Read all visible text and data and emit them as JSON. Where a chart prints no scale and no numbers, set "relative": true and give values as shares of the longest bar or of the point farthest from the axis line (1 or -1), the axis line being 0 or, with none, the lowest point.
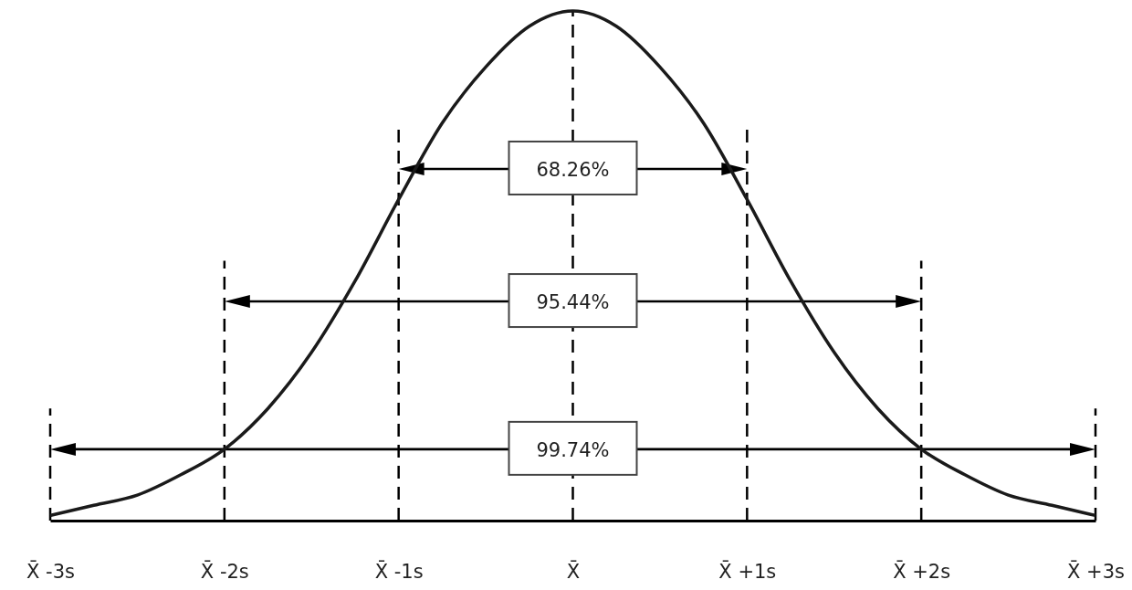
{
  "chart_data": {
    "type": "line",
    "relative": true,
    "line_style": "solid",
    "x": [
      -3,
      -2.75,
      -2.5,
      -2.25,
      -2,
      -1.75,
      -1.5,
      -1.25,
      -1,
      -0.75,
      -0.5,
      -0.25,
      0,
      0.25,
      0.5,
      0.75,
      1,
      1.25,
      1.5,
      1.75,
      2,
      2.25,
      2.5,
      2.75,
      3
    ],
    "series": [
      {
        "color": "#1a1a1a",
        "values": [
          0.01,
          0.03,
          0.05,
          0.09,
          0.14,
          0.22,
          0.33,
          0.47,
          0.63,
          0.78,
          0.89,
          0.97,
          1,
          0.97,
          0.89,
          0.78,
          0.63,
          0.47,
          0.33,
          0.22,
          0.14,
          0.09,
          0.05,
          0.03,
          0.01
        ]
      }
    ],
    "xlim": [
      -3,
      3
    ],
    "xticks": [
      {
        "value": -3,
        "label": "X̄ -3s"
      },
      {
        "value": -2,
        "label": "X̄ -2s"
      },
      {
        "value": -1,
        "label": "X̄ -1s"
      },
      {
        "value": 0,
        "label": "X̄"
      },
      {
        "value": 1,
        "label": "X̄ +1s"
      },
      {
        "value": 2,
        "label": "X̄ +2s"
      },
      {
        "value": 3,
        "label": "X̄ +3s"
      }
    ],
    "ref_lines": [
      {
        "axis": "x",
        "value": -3,
        "line_style": "dashed"
      },
      {
        "axis": "x",
        "value": -2,
        "line_style": "dashed"
      },
      {
        "axis": "x",
        "value": -1,
        "line_style": "dashed"
      },
      {
        "axis": "x",
        "value": 0,
        "line_style": "dashed"
      },
      {
        "axis": "x",
        "value": 1,
        "line_style": "dashed"
      },
      {
        "axis": "x",
        "value": 2,
        "line_style": "dashed"
      },
      {
        "axis": "x",
        "value": 3,
        "line_style": "dashed"
      }
    ],
    "annotations": [
      "68.26%",
      "95.44%",
      "99.74%"
    ]
  }
}
